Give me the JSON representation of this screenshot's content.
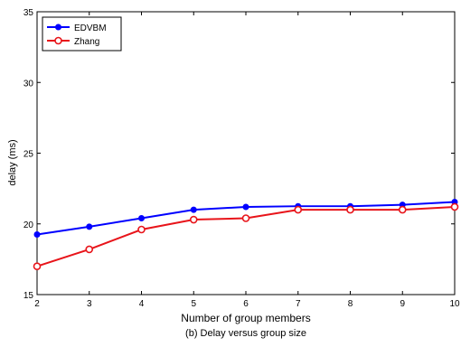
{
  "chart_data": {
    "type": "line",
    "caption": "(b) Delay versus group size",
    "xlabel": "Number of group members",
    "ylabel": "delay (ms)",
    "xlim": [
      2,
      10
    ],
    "ylim": [
      15,
      35
    ],
    "x_ticks": [
      "2",
      "3",
      "4",
      "5",
      "6",
      "7",
      "8",
      "9",
      "10"
    ],
    "y_ticks": [
      "15",
      "20",
      "25",
      "30",
      "35"
    ],
    "grid": false,
    "legend_position": "top-left",
    "x": [
      2,
      3,
      4,
      5,
      6,
      7,
      8,
      9,
      10
    ],
    "series": [
      {
        "name": "EDVBM",
        "color": "#0000ff",
        "marker": "filled-circle",
        "values": [
          19.25,
          19.8,
          20.4,
          21.0,
          21.2,
          21.25,
          21.25,
          21.35,
          21.55
        ]
      },
      {
        "name": "Zhang",
        "color": "#e8141a",
        "marker": "open-circle",
        "values": [
          17.0,
          18.2,
          19.6,
          20.3,
          20.4,
          21.0,
          21.0,
          21.0,
          21.2
        ]
      }
    ]
  }
}
